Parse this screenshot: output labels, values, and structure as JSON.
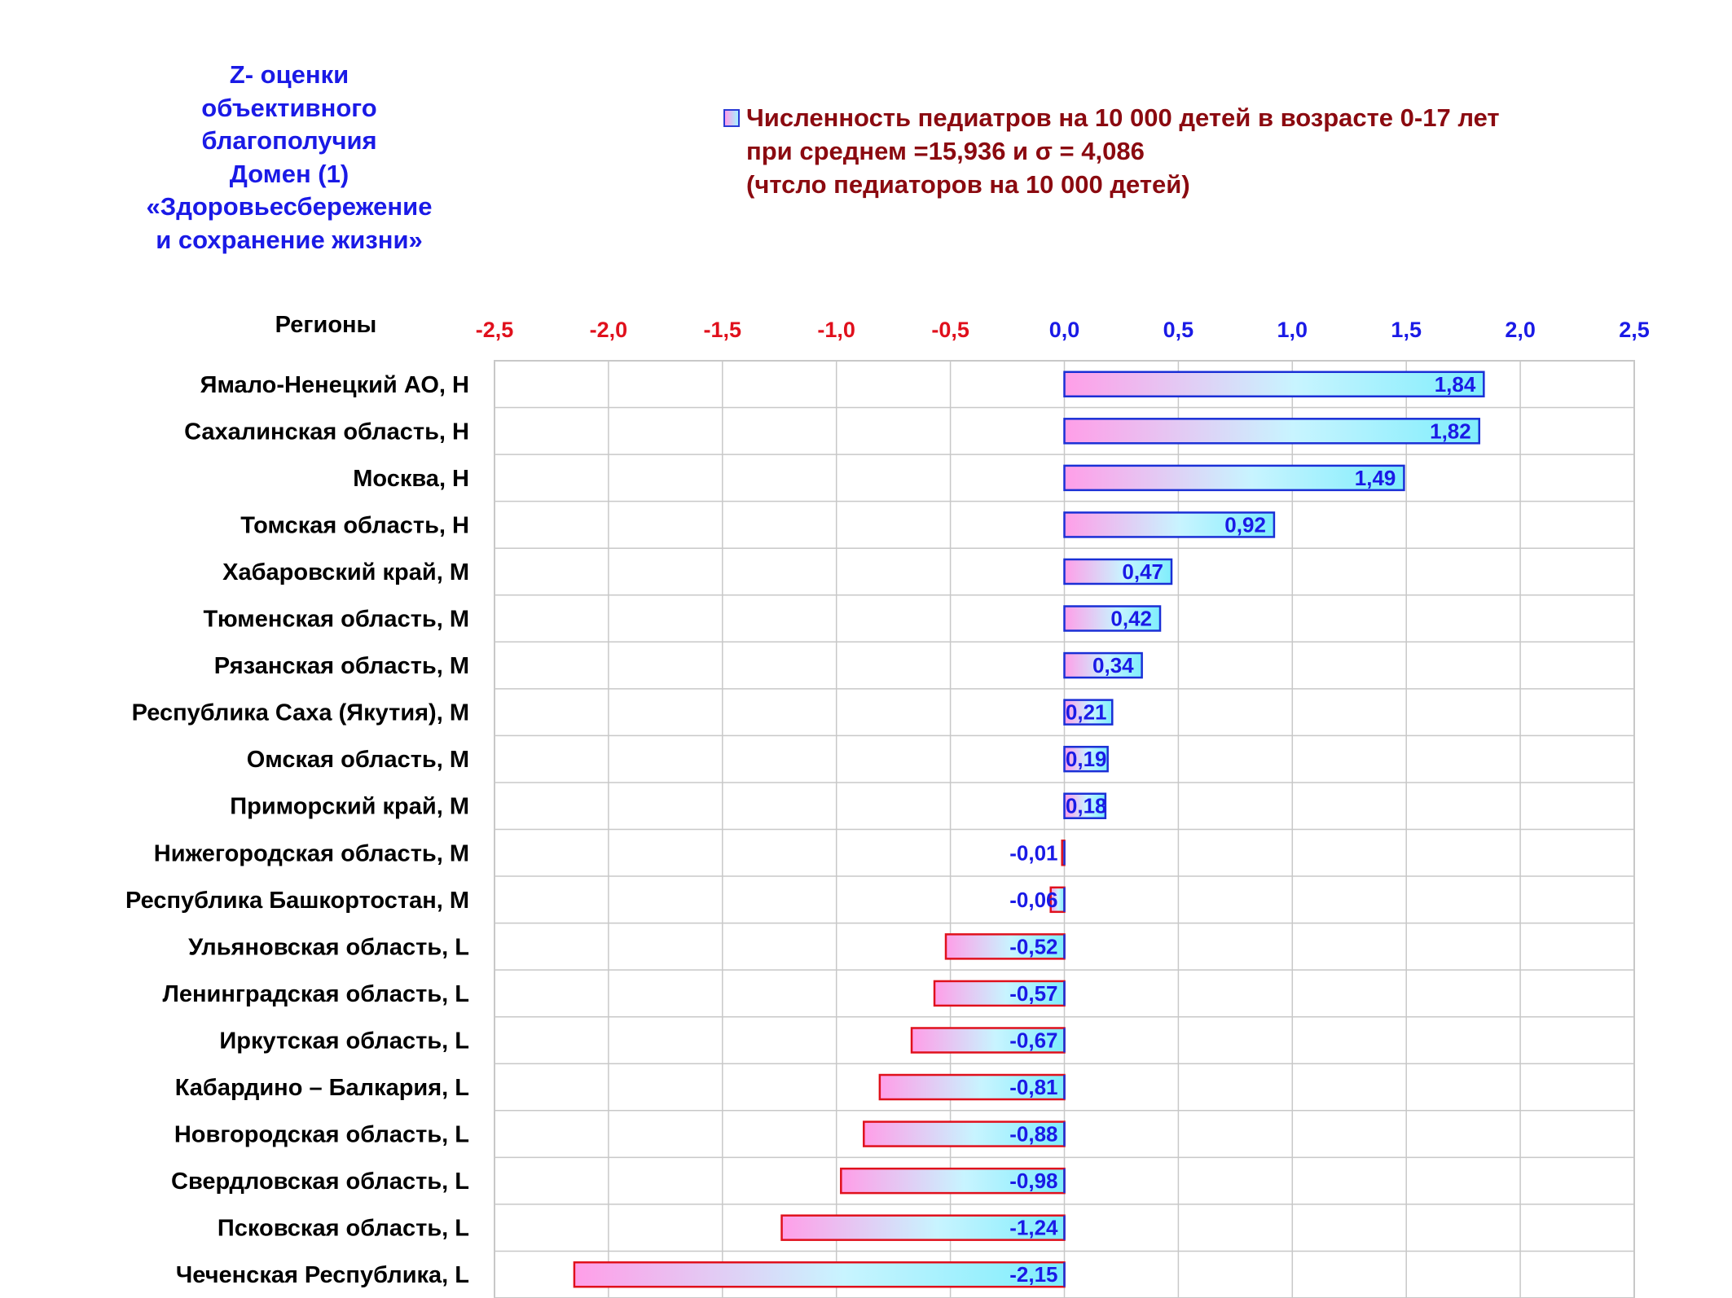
{
  "header": {
    "title_lines": [
      "Z- оценки",
      "объективного",
      "благополучия",
      "Домен (1)",
      "«Здоровьесбережение",
      "и сохранение жизни»"
    ],
    "legend_lines": [
      "Численность педиатров на 10 000 детей в возрасте 0-17 лет",
      "при среднем =15,936  и σ = 4,086",
      "(чтсло педиаторов на 10 000 детей)"
    ]
  },
  "colors": {
    "title": "#1a1ae6",
    "legend_text": "#8b0a10",
    "negative_tick": "#e0101c",
    "positive_tick": "#1a1ae6",
    "bar_left": "#ff9ee8",
    "bar_right": "#7feefc",
    "bar_border_pos": "#1a2fd6",
    "bar_border_neg": "#e0101c",
    "value_label": "#1a1ae6",
    "grid": "#c8c8c8"
  },
  "chart_data": {
    "type": "bar",
    "orientation": "horizontal",
    "ylabel": "Регионы",
    "xlim": [
      -2.5,
      2.5
    ],
    "xticks": [
      -2.5,
      -2.0,
      -1.5,
      -1.0,
      -0.5,
      0.0,
      0.5,
      1.0,
      1.5,
      2.0,
      2.5
    ],
    "xtick_labels": [
      "-2,5",
      "-2,0",
      "-1,5",
      "-1,0",
      "-0,5",
      "0,0",
      "0,5",
      "1,0",
      "1,5",
      "2,0",
      "2,5"
    ],
    "grid": true,
    "categories": [
      "Ямало-Ненецкий АО,  Н",
      "Сахалинская область,  Н",
      "Москва,  Н",
      "Томская область,  Н",
      "Хабаровский край,  M",
      "Тюменская область,  M",
      "Рязанская область,  M",
      "Республика Саха (Якутия),  M",
      "Омская область,  M",
      "Приморский край,  M",
      "Нижегородская область,  M",
      "Республика Башкортостан,  M",
      "Ульяновская область,  L",
      "Ленинградская область,  L",
      "Иркутская область,  L",
      "Кабардино – Балкария,  L",
      "Новгородская область,  L",
      "Свердловская область,  L",
      "Псковская область,  L",
      "Чеченская Республика,  L"
    ],
    "values": [
      1.84,
      1.82,
      1.49,
      0.92,
      0.47,
      0.42,
      0.34,
      0.21,
      0.19,
      0.18,
      -0.01,
      -0.06,
      -0.52,
      -0.57,
      -0.67,
      -0.81,
      -0.88,
      -0.98,
      -1.24,
      -2.15
    ],
    "value_labels": [
      "1,84",
      "1,82",
      "1,49",
      "0,92",
      "0,47",
      "0,42",
      "0,34",
      "0,21",
      "0,19",
      "0,18",
      "-0,01",
      "-0,06",
      "-0,52",
      "-0,57",
      "-0,67",
      "-0,81",
      "-0,88",
      "-0,98",
      "-1,24",
      "-2,15"
    ]
  }
}
